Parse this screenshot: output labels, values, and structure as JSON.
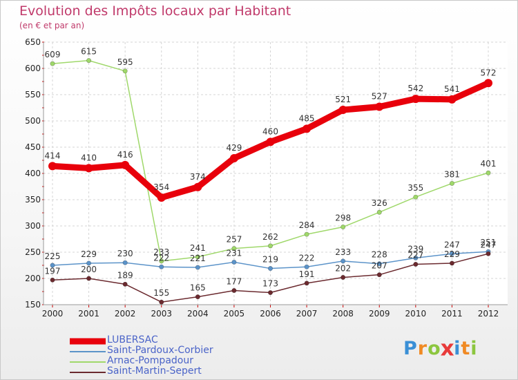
{
  "chart_data": {
    "type": "line",
    "title": "Evolution des Impôts locaux par Habitant",
    "subtitle": "(en € et par an)",
    "x": [
      "2000",
      "2001",
      "2002",
      "2003",
      "2004",
      "2005",
      "2006",
      "2007",
      "2008",
      "2009",
      "2010",
      "2011",
      "2012"
    ],
    "ylim": [
      150,
      650
    ],
    "yticks": [
      150,
      200,
      250,
      300,
      350,
      400,
      450,
      500,
      550,
      600,
      650
    ],
    "grid": true,
    "legend_position": "bottom-left",
    "series": [
      {
        "name": "LUBERSAC",
        "color": "#e8000b",
        "values": [
          414,
          410,
          416,
          354,
          374,
          429,
          460,
          485,
          521,
          527,
          542,
          541,
          572
        ]
      },
      {
        "name": "Saint-Pardoux-Corbier",
        "color": "#5b93c9",
        "values": [
          225,
          229,
          230,
          222,
          221,
          231,
          219,
          222,
          233,
          228,
          239,
          247,
          251
        ]
      },
      {
        "name": "Arnac-Pompadour",
        "color": "#9fd86a",
        "values": [
          609,
          615,
          595,
          233,
          241,
          257,
          262,
          284,
          298,
          326,
          355,
          381,
          401
        ]
      },
      {
        "name": "Saint-Martin-Sepert",
        "color": "#6b2a2f",
        "values": [
          197,
          200,
          189,
          155,
          165,
          177,
          173,
          191,
          202,
          207,
          227,
          229,
          247
        ]
      }
    ]
  },
  "logo": {
    "letters": [
      "P",
      "r",
      "o",
      "x",
      "i",
      "t",
      "i"
    ],
    "colors": [
      "#3a8fd6",
      "#f08a24",
      "#8cc63f",
      "#e83a3a",
      "#3a8fd6",
      "#f08a24",
      "#8cc63f"
    ]
  }
}
